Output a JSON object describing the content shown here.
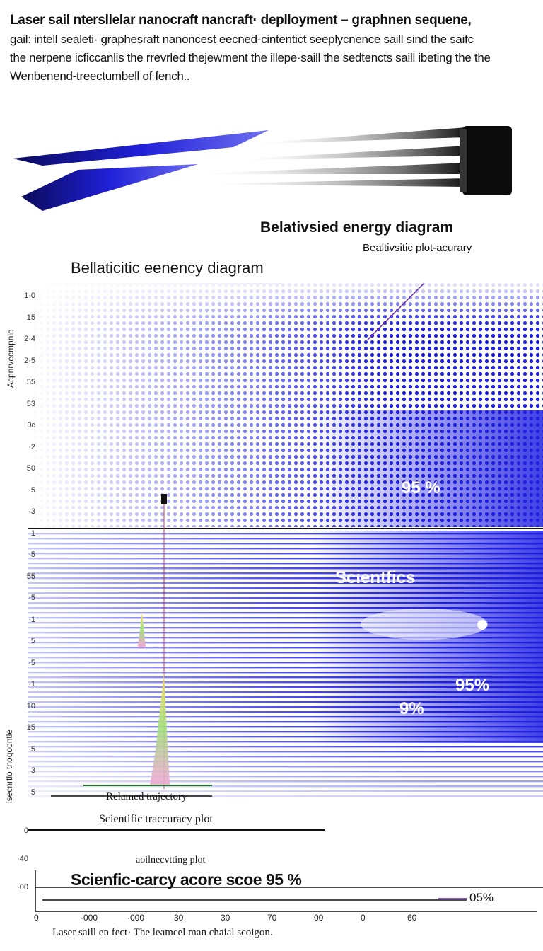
{
  "header": {
    "line1": "Laser sail ntersllelar nanocraft nancraft· deplloyment – graphnen sequene,",
    "line2": "gail: intell sealeti· graphesraft nanoncest eecned-cintentict seeplycnence saill sind the saifc",
    "line3": "the nerpene icficcanlis the rrevrled thejewment the illepe·saill the sedtencts saill ibeting the the",
    "line4": "Wenbenend-treectumbell of fench.."
  },
  "titles": {
    "right": "Belativsied energy  diagram",
    "accuracy": "Bealtivsitic plot-acurary",
    "left": "Bellaticitic eenency diagram"
  },
  "overlay": {
    "pct_a": "95 %",
    "scientific": "Scientfics",
    "pct_b": "95%",
    "pct_c": "9%"
  },
  "y_ticks": [
    "1·0",
    "15",
    "2·4",
    "2·5",
    "55",
    "53",
    "0c",
    "·2",
    "50",
    "·5",
    "·3",
    "1",
    "·5",
    "55",
    "·5",
    "·1",
    "5",
    "·5",
    "·1",
    "10",
    "15",
    "·5",
    "3",
    "5"
  ],
  "lower_y_ticks": [
    "0",
    "·40",
    "·00"
  ],
  "rotated_labels": {
    "upper": "Acpnrvecmpnlo",
    "lower": "lsecnrtlo tnoqoontle"
  },
  "annotations": {
    "trajectory": "Relamed trajectory",
    "accuracy_plot": "Scientific traccuracy  plot",
    "rec_plot": "aoilnecvtting plot",
    "score": "Scienfic-carcy acore scoe 95  %",
    "score_right": "05%"
  },
  "x_ticks": [
    "0",
    "·000",
    "·000",
    "30",
    "30",
    "70",
    "00",
    "0",
    "60"
  ],
  "caption": "Laser saill en fect· The leamcel man chaial scoigon.",
  "colors": {
    "blue": "#1f1fe0",
    "dark_blue": "#0b0b8c",
    "black": "#111111"
  }
}
